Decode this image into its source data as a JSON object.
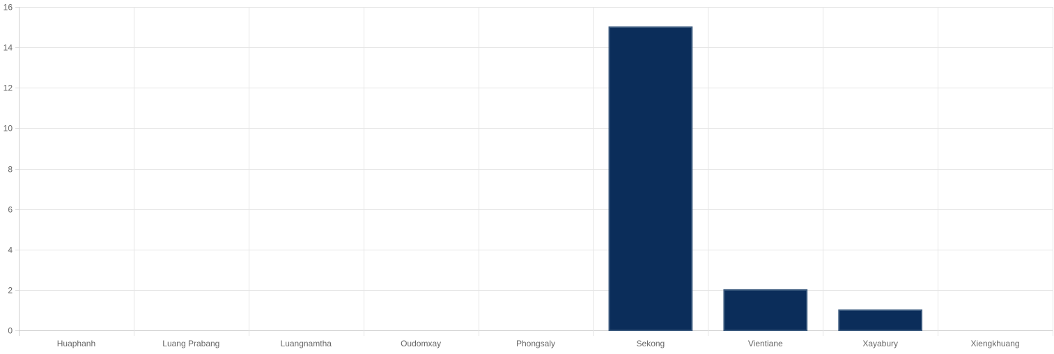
{
  "chart_data": {
    "type": "bar",
    "categories": [
      "Huaphanh",
      "Luang Prabang",
      "Luangnamtha",
      "Oudomxay",
      "Phongsaly",
      "Sekong",
      "Vientiane",
      "Xayabury",
      "Xiengkhuang"
    ],
    "values": [
      0,
      0,
      0,
      0,
      0,
      15,
      2,
      1,
      0
    ],
    "title": "",
    "xlabel": "",
    "ylabel": "",
    "ylim": [
      0,
      16
    ],
    "yticks": [
      0,
      2,
      4,
      6,
      8,
      10,
      12,
      14,
      16
    ],
    "grid": true,
    "legend": "none",
    "colors": {
      "bar_fill": "#0b2d5a",
      "bar_stroke": "#3b5a7e",
      "grid": "#e5e5e5",
      "tick_text": "#666666"
    }
  }
}
